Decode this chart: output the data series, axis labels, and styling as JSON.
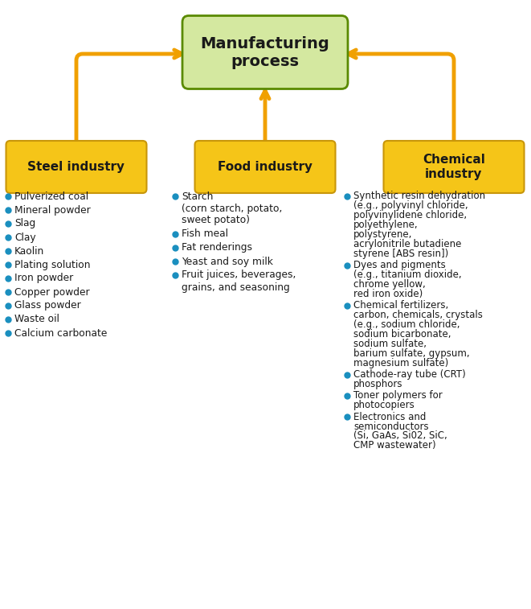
{
  "title": "Manufacturing\nprocess",
  "title_box_color": "#d4e8a0",
  "title_box_edge": "#5a8a00",
  "title_font_color": "#1a1a1a",
  "arrow_color": "#f0a000",
  "industry_box_color": "#f5c518",
  "industry_box_edge": "#c8960a",
  "industry_font_color": "#1a1a1a",
  "bullet_color": "#1a8fbf",
  "text_color": "#1a1a1a",
  "bg_color": "#ffffff",
  "industries": [
    "Steel industry",
    "Food industry",
    "Chemical\nindustry"
  ],
  "steel_items": [
    "Pulverized coal",
    "Mineral powder",
    "Slag",
    "Clay",
    "Kaolin",
    "Plating solution",
    "Iron powder",
    "Copper powder",
    "Glass powder",
    "Waste oil",
    "Calcium carbonate"
  ],
  "food_items": [
    "Starch\n(corn starch, potato,\nsweet potato)",
    "Fish meal",
    "Fat renderings",
    "Yeast and soy milk",
    "Fruit juices, beverages,\ngrains, and seasoning"
  ],
  "chemical_items": [
    "Synthetic resin dehydration\n(e.g., polyvinyl chloride,\npolyvinylidene chloride,\npolyethylene,\npolystyrene,\nacrylonitrile butadiene\nstyrene [ABS resin])",
    "Dyes and pigments\n(e.g., titanium dioxide,\nchrome yellow,\nred iron oxide)",
    "Chemical fertilizers,\ncarbon, chemicals, crystals\n(e.g., sodium chloride,\nsodium bicarbonate,\nsodium sulfate,\nbarium sulfate, gypsum,\nmagnesium sulfate)",
    "Cathode-ray tube (CRT)\nphosphors",
    "Toner polymers for\nphotocopiers",
    "Electronics and\nsemiconductors\n(Si, GaAs, Si02, SiC,\nCMP wastewater)"
  ]
}
